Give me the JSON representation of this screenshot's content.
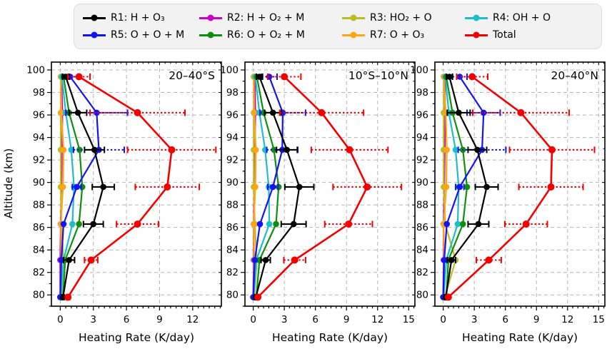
{
  "figure": {
    "background": "#ffffff"
  },
  "legend": {
    "items": [
      {
        "name": "R1",
        "label": "R1: H + O₃",
        "color": "#000000",
        "err_style": "solid"
      },
      {
        "name": "R2",
        "label": "R2: H + O₂ + M",
        "color": "#c800c8",
        "err_style": "dotted"
      },
      {
        "name": "R3",
        "label": "R3: HO₂ + O",
        "color": "#b9bd22",
        "err_style": "dotted"
      },
      {
        "name": "R4",
        "label": "R4: OH + O",
        "color": "#1cbecd",
        "err_style": "dotted"
      },
      {
        "name": "R5",
        "label": "R5: O + O + M",
        "color": "#1414f0",
        "err_style": "dotted"
      },
      {
        "name": "R6",
        "label": "R6: O + O₂ + M",
        "color": "#0e8f0e",
        "err_style": "dotted"
      },
      {
        "name": "R7",
        "label": "R7: O + O₃",
        "color": "#ffa513",
        "err_style": "dotted"
      },
      {
        "name": "Total",
        "label": "Total",
        "color": "#f50000",
        "err_style": "dotted"
      }
    ]
  },
  "axes_shared": {
    "xlabel": "Heating Rate (K/day)",
    "ylabel": "Altitude (km)",
    "ylim": [
      79.0,
      100.7
    ],
    "yticks": [
      80,
      82,
      84,
      86,
      88,
      90,
      92,
      94,
      96,
      98,
      100
    ],
    "y_minor_step": 1,
    "x_minor_step": 0.5,
    "grid": "dashed-major"
  },
  "chart_data": {
    "type": "line",
    "orientation": "profile-vs-altitude",
    "altitudes_km": [
      79.8,
      83.1,
      86.3,
      89.6,
      92.9,
      96.2,
      99.4
    ],
    "panels": [
      {
        "title": "20–40°S",
        "xlim": [
          -0.8,
          14.6
        ],
        "xticks": [
          0,
          3,
          6,
          9,
          12
        ],
        "series": [
          {
            "name": "R1",
            "values": [
              0.25,
              0.8,
              3.0,
              3.9,
              3.1,
              1.6,
              0.5
            ],
            "err": [
              0.1,
              0.5,
              0.9,
              1.0,
              0.9,
              0.8,
              0.3
            ]
          },
          {
            "name": "R2",
            "values": [
              0.0,
              0.0,
              0.05,
              0.1,
              0.15,
              0.2,
              0.1
            ],
            "err": [
              0,
              0,
              0,
              0,
              0,
              0,
              0
            ]
          },
          {
            "name": "R3",
            "values": [
              0.1,
              0.3,
              0.1,
              0.05,
              0.05,
              0.05,
              0.05
            ],
            "err": [
              0,
              0,
              0,
              0,
              0,
              0,
              0
            ]
          },
          {
            "name": "R4",
            "values": [
              0.05,
              0.3,
              1.1,
              1.25,
              1.0,
              0.5,
              0.15
            ],
            "err": [
              0,
              0,
              0,
              0,
              0,
              0,
              0
            ]
          },
          {
            "name": "R5",
            "values": [
              0.0,
              0.1,
              0.3,
              1.5,
              3.5,
              3.3,
              0.9
            ],
            "err": [
              0,
              0,
              0,
              0.4,
              2.3,
              2.8,
              0.7
            ]
          },
          {
            "name": "R6",
            "values": [
              0.25,
              0.45,
              1.7,
              2.0,
              1.75,
              0.8,
              0.3
            ],
            "err": [
              0,
              0,
              0,
              0,
              0,
              0,
              0
            ]
          },
          {
            "name": "R7",
            "values": [
              0.05,
              0.1,
              0.05,
              0.25,
              0.3,
              0.1,
              0.05
            ],
            "err": [
              0,
              0,
              0,
              0,
              0,
              0,
              0
            ]
          },
          {
            "name": "Total",
            "values": [
              0.7,
              2.8,
              7.0,
              9.7,
              10.1,
              7.0,
              1.7
            ],
            "err": [
              0.15,
              0.6,
              1.9,
              2.9,
              4.0,
              4.3,
              1.0
            ]
          }
        ]
      },
      {
        "title": "10°S–10°N",
        "xlim": [
          -0.8,
          15.6
        ],
        "xticks": [
          0,
          3,
          6,
          9,
          12,
          15
        ],
        "series": [
          {
            "name": "R1",
            "values": [
              0.25,
              1.2,
              3.9,
              4.45,
              3.25,
              1.9,
              0.6
            ],
            "err": [
              0.1,
              0.45,
              1.2,
              1.4,
              1.0,
              0.8,
              0.3
            ]
          },
          {
            "name": "R2",
            "values": [
              0.0,
              0.05,
              0.05,
              0.1,
              0.15,
              0.2,
              0.15
            ],
            "err": [
              0,
              0,
              0,
              0,
              0,
              0,
              0
            ]
          },
          {
            "name": "R3",
            "values": [
              0.1,
              0.35,
              0.15,
              0.05,
              0.05,
              0.05,
              0.05
            ],
            "err": [
              0,
              0,
              0,
              0,
              0,
              0,
              0
            ]
          },
          {
            "name": "R4",
            "values": [
              0.05,
              0.3,
              1.55,
              1.5,
              1.15,
              0.6,
              0.2
            ],
            "err": [
              0,
              0,
              0,
              0,
              0,
              0,
              0
            ]
          },
          {
            "name": "R5",
            "values": [
              0.0,
              0.15,
              0.65,
              1.9,
              2.8,
              2.85,
              1.55
            ],
            "err": [
              0,
              0,
              0,
              0.5,
              1.5,
              2.2,
              0.75
            ]
          },
          {
            "name": "R6",
            "values": [
              0.3,
              0.6,
              2.2,
              2.45,
              2.0,
              1.0,
              0.35
            ],
            "err": [
              0,
              0,
              0,
              0,
              0,
              0,
              0
            ]
          },
          {
            "name": "R7",
            "values": [
              0.05,
              0.1,
              0.05,
              0.2,
              0.25,
              0.1,
              0.05
            ],
            "err": [
              0,
              0,
              0,
              0,
              0,
              0,
              0
            ]
          },
          {
            "name": "Total",
            "values": [
              0.45,
              4.0,
              9.2,
              11.0,
              9.3,
              6.6,
              3.0
            ],
            "err": [
              0.1,
              1.05,
              2.3,
              3.3,
              3.7,
              4.05,
              1.6
            ]
          }
        ]
      },
      {
        "title": "20–40°N",
        "xlim": [
          -0.8,
          15.6
        ],
        "xticks": [
          0,
          3,
          6,
          9,
          12,
          15
        ],
        "series": [
          {
            "name": "R1",
            "values": [
              0.25,
              0.8,
              3.4,
              4.2,
              3.3,
              1.5,
              0.6
            ],
            "err": [
              0.1,
              0.4,
              1.0,
              1.1,
              0.9,
              1.1,
              0.3
            ]
          },
          {
            "name": "R2",
            "values": [
              0.0,
              0.05,
              0.05,
              0.1,
              0.15,
              0.2,
              0.15
            ],
            "err": [
              0,
              0,
              0,
              0,
              0,
              0,
              0
            ]
          },
          {
            "name": "R3",
            "values": [
              0.15,
              1.2,
              0.2,
              0.05,
              0.05,
              0.05,
              0.05
            ],
            "err": [
              0,
              0,
              0,
              0,
              0,
              0,
              0
            ]
          },
          {
            "name": "R4",
            "values": [
              0.05,
              0.3,
              1.4,
              1.5,
              1.2,
              0.55,
              0.2
            ],
            "err": [
              0,
              0,
              0,
              0,
              0,
              0,
              0
            ]
          },
          {
            "name": "R5",
            "values": [
              0.0,
              0.1,
              0.35,
              1.6,
              3.75,
              3.9,
              1.6
            ],
            "err": [
              0,
              0,
              0,
              0.4,
              2.3,
              1.6,
              0.7
            ]
          },
          {
            "name": "R6",
            "values": [
              0.3,
              0.5,
              1.9,
              2.3,
              1.9,
              0.9,
              0.3
            ],
            "err": [
              0,
              0,
              0,
              0,
              0,
              0,
              0
            ]
          },
          {
            "name": "R7",
            "values": [
              0.05,
              0.1,
              0.05,
              0.3,
              0.35,
              0.25,
              0.05
            ],
            "err": [
              0,
              0,
              0,
              0,
              0,
              0,
              0
            ]
          },
          {
            "name": "Total",
            "values": [
              0.5,
              4.4,
              8.0,
              10.4,
              10.5,
              7.5,
              2.8
            ],
            "err": [
              0.1,
              1.2,
              2.05,
              3.1,
              4.1,
              4.65,
              1.5
            ]
          }
        ]
      }
    ]
  }
}
